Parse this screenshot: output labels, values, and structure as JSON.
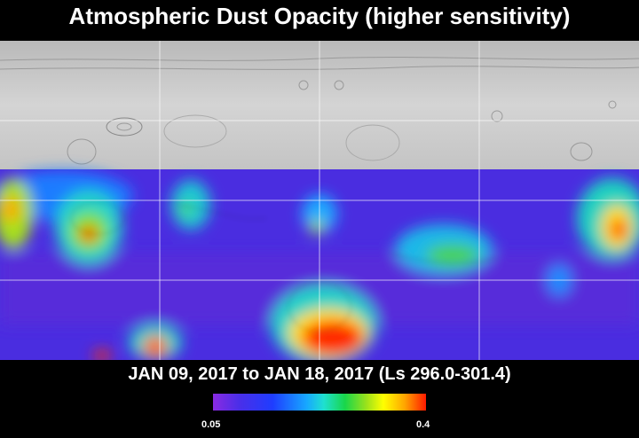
{
  "title": "Atmospheric Dust Opacity (higher sensitivity)",
  "date_range": "JAN 09, 2017 to JAN 18, 2017 (Ls 296.0-301.4)",
  "colorbar": {
    "min_label": "0.05",
    "max_label": "0.4",
    "colors": [
      "#8a2be2",
      "#4b2ee8",
      "#1f3dff",
      "#17a8ff",
      "#1fe0d0",
      "#19d64a",
      "#9be21b",
      "#ffff00",
      "#ffa500",
      "#ff1a00"
    ]
  },
  "map": {
    "base_color": "#c8c8c8",
    "data_color": "#4a2de0",
    "grid_color": "#ffffff"
  }
}
